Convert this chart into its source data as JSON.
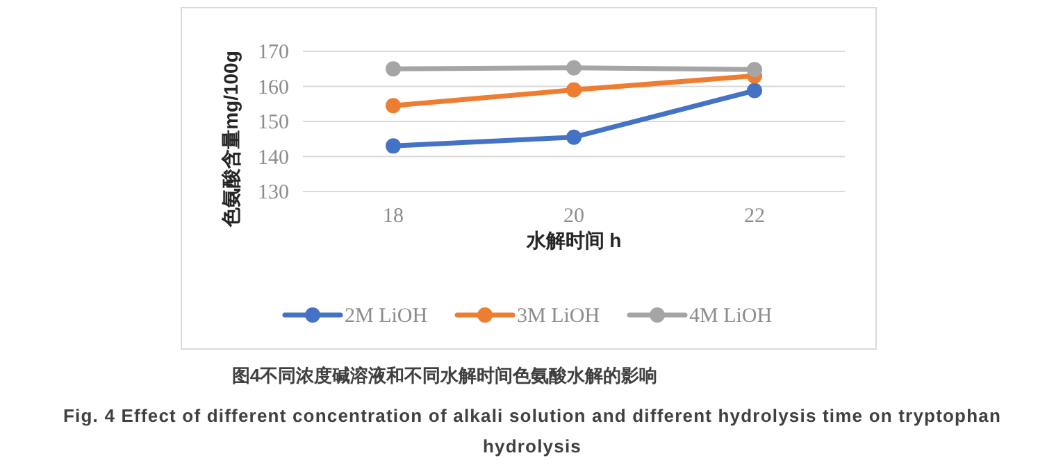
{
  "chart_data": {
    "type": "line",
    "title": "图4不同浓度碱溶液和不同水解时间色氨酸水解的影响",
    "subtitle": "Fig. 4 Effect of different concentration of alkali solution and different hydrolysis time on tryptophan hydrolysis",
    "xlabel": "水解时间 h",
    "ylabel": "色氨酸含量mg/100g",
    "categories": [
      "18",
      "20",
      "22"
    ],
    "series": [
      {
        "name": "2M LiOH",
        "color": "#4472c4",
        "values": [
          143,
          145.5,
          158.8
        ]
      },
      {
        "name": "3M LiOH",
        "color": "#ed7d31",
        "values": [
          154.5,
          159,
          163
        ]
      },
      {
        "name": "4M LiOH",
        "color": "#a5a5a5",
        "values": [
          165,
          165.3,
          164.8
        ]
      }
    ],
    "ylim": [
      130,
      170
    ],
    "yticks": [
      130,
      140,
      150,
      160,
      170
    ],
    "grid": "y",
    "legend": "bottom",
    "marker": "circle"
  }
}
